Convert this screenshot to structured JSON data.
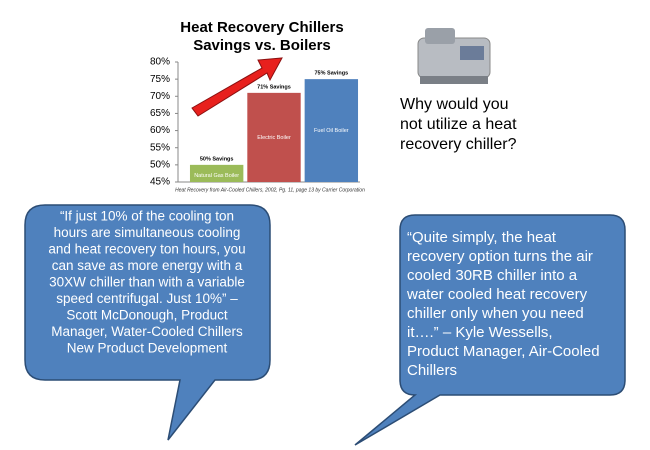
{
  "chart_data": {
    "type": "bar",
    "title": "Heat Recovery Chillers",
    "subtitle": "Savings vs. Boilers",
    "categories": [
      "Natural Gas Boiler",
      "Electric Boiler",
      "Fuel Oil Boiler"
    ],
    "values": [
      50,
      71,
      75
    ],
    "value_labels": [
      "50% Savings",
      "71% Savings",
      "75% Savings"
    ],
    "colors": [
      "#9bbb59",
      "#c0504d",
      "#4f81bd"
    ],
    "ylim": [
      45,
      80
    ],
    "yticks": [
      {
        "value": 45,
        "label": "45%"
      },
      {
        "value": 50,
        "label": "50%"
      },
      {
        "value": 55,
        "label": "55%"
      },
      {
        "value": 60,
        "label": "60%"
      },
      {
        "value": 65,
        "label": "65%"
      },
      {
        "value": 70,
        "label": "70%"
      },
      {
        "value": 75,
        "label": "75%"
      },
      {
        "value": 80,
        "label": "80%"
      }
    ],
    "source": "Heat Recovery from Air-Cooled Chillers, 2002, Pg. 11, page 13 by Carrier Corporation"
  },
  "question": {
    "lines": [
      "Why would you",
      "not utilize a heat",
      "recovery chiller?"
    ]
  },
  "callouts": [
    {
      "lines": [
        "“If just 10% of the cooling ton",
        "hours are simultaneous cooling",
        "and heat recovery ton hours, you",
        "can save as more energy with a",
        "30XW chiller than with a variable",
        "speed centrifugal.  Just 10%” –",
        "Scott McDonough, Product",
        "Manager, Water-Cooled Chillers",
        "New Product Development"
      ]
    },
    {
      "lines": [
        "“Quite simply, the heat",
        "recovery option turns the air",
        "cooled 30RB chiller into a",
        "water cooled heat recovery",
        "chiller only when you need",
        "it….” – Kyle Wessells,",
        "Product Manager, Air-Cooled",
        "Chillers"
      ]
    }
  ]
}
